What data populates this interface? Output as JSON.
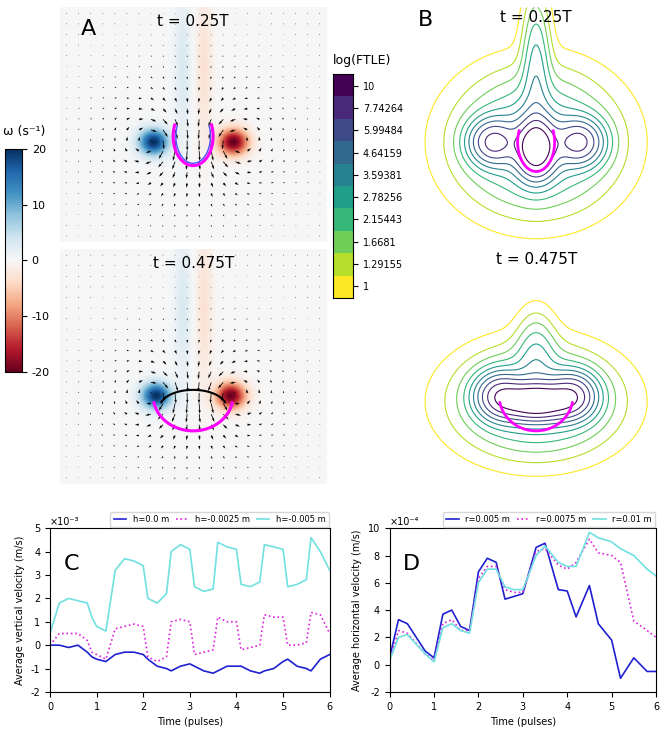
{
  "chart_data": [
    {
      "type": "vorticity_field",
      "label": "A",
      "frames": [
        "t = 0.25T",
        "t = 0.475T"
      ],
      "colorbar": {
        "label": "ω (s⁻¹)",
        "range": [
          -20,
          20
        ],
        "ticks": [
          -20,
          -10,
          0,
          10,
          20
        ]
      }
    },
    {
      "type": "ftle_contour",
      "label": "B",
      "frames": [
        "t = 0.25T",
        "t = 0.475T"
      ],
      "colorbar": {
        "label": "log(FTLE)",
        "levels": [
          10,
          7.74264,
          5.99484,
          4.64159,
          3.59381,
          2.78256,
          2.15443,
          1.6681,
          1.29155,
          1
        ],
        "colors": [
          "#440154",
          "#482878",
          "#3e4989",
          "#31688e",
          "#26828e",
          "#1f9e89",
          "#35b779",
          "#6ece58",
          "#b5de2b",
          "#fde725"
        ]
      }
    },
    {
      "type": "line",
      "label": "C",
      "x": [
        0,
        0.2,
        0.4,
        0.6,
        0.8,
        0.9,
        1.0,
        1.2,
        1.4,
        1.6,
        1.8,
        2.0,
        2.1,
        2.3,
        2.5,
        2.6,
        2.8,
        3.0,
        3.1,
        3.3,
        3.5,
        3.6,
        3.8,
        4.0,
        4.1,
        4.3,
        4.5,
        4.6,
        4.8,
        5.0,
        5.1,
        5.3,
        5.5,
        5.6,
        5.8,
        6.0
      ],
      "series": [
        {
          "name": "h=0.0 m",
          "color": "#2020d0",
          "line_style": "solid",
          "values": [
            0,
            0,
            -0.1,
            0,
            -0.3,
            -0.5,
            -0.6,
            -0.7,
            -0.4,
            -0.3,
            -0.3,
            -0.4,
            -0.6,
            -0.9,
            -1.0,
            -1.1,
            -0.9,
            -0.8,
            -0.9,
            -1.1,
            -1.2,
            -1.1,
            -0.9,
            -0.9,
            -0.9,
            -1.1,
            -1.2,
            -1.1,
            -1.0,
            -0.7,
            -0.6,
            -0.9,
            -1.0,
            -1.1,
            -0.6,
            -0.4
          ]
        },
        {
          "name": "h=-0.0025 m",
          "color": "#e020e0",
          "line_style": "dotted",
          "values": [
            0,
            0.5,
            0.5,
            0.5,
            0.2,
            -0.3,
            -0.4,
            -0.6,
            0.7,
            0.8,
            0.9,
            0.8,
            -0.5,
            -0.7,
            -0.5,
            1.0,
            1.1,
            1.0,
            -0.4,
            -0.3,
            -0.2,
            1.2,
            1.0,
            1.0,
            -0.2,
            -0.1,
            0,
            1.3,
            1.2,
            1.2,
            0,
            0,
            0.1,
            1.4,
            1.3,
            0.5
          ]
        },
        {
          "name": "h=-0.005 m",
          "color": "#70e0e0",
          "line_style": "solid",
          "values": [
            0.5,
            1.8,
            2.0,
            1.9,
            1.8,
            1.2,
            0.8,
            0.6,
            3.2,
            3.7,
            3.6,
            3.4,
            2.0,
            1.8,
            2.2,
            4.0,
            4.3,
            4.1,
            2.5,
            2.3,
            2.4,
            4.4,
            4.2,
            4.1,
            2.6,
            2.5,
            2.7,
            4.3,
            4.2,
            4.1,
            2.5,
            2.6,
            2.8,
            4.6,
            4.0,
            3.2
          ]
        }
      ],
      "xlabel": "Time (pulses)",
      "ylabel": "Average vertical velocity (m/s)",
      "y_multiplier": "×10⁻³",
      "xlim": [
        0,
        6
      ],
      "xticks": [
        0,
        1,
        2,
        3,
        4,
        5,
        6
      ],
      "ylim": [
        -2,
        5
      ],
      "yticks": [
        -2,
        -1,
        0,
        1,
        2,
        3,
        4,
        5
      ],
      "legend": "upper right"
    },
    {
      "type": "line",
      "label": "D",
      "x": [
        0,
        0.2,
        0.4,
        0.8,
        1.0,
        1.2,
        1.4,
        1.6,
        1.8,
        2.0,
        2.2,
        2.4,
        2.6,
        2.8,
        3.0,
        3.3,
        3.5,
        3.8,
        4.0,
        4.2,
        4.5,
        4.7,
        5.0,
        5.2,
        5.5,
        5.8,
        6.0
      ],
      "series": [
        {
          "name": "r=0.005 m",
          "color": "#2020d0",
          "line_style": "solid",
          "values": [
            0.5,
            3.3,
            3.0,
            1.0,
            0.5,
            3.7,
            4.0,
            2.8,
            2.5,
            6.8,
            7.8,
            7.5,
            4.8,
            5.0,
            5.2,
            8.6,
            8.9,
            5.5,
            5.4,
            3.5,
            5.8,
            3.0,
            1.8,
            -1.0,
            0.5,
            -0.5,
            -0.5
          ]
        },
        {
          "name": "r=0.0075 m",
          "color": "#e020e0",
          "line_style": "dotted",
          "values": [
            0.3,
            2.5,
            2.3,
            0.8,
            0.3,
            3.0,
            3.3,
            2.5,
            2.5,
            6.3,
            7.2,
            7.2,
            5.5,
            5.3,
            5.3,
            8.3,
            8.5,
            7.3,
            7.0,
            7.5,
            9.2,
            8.2,
            8.0,
            7.5,
            3.2,
            2.5,
            2.0
          ]
        },
        {
          "name": "r=0.01 m",
          "color": "#70e0e0",
          "line_style": "solid",
          "values": [
            0.3,
            2.0,
            2.2,
            0.8,
            0.2,
            2.7,
            3.0,
            2.5,
            2.3,
            6.0,
            7.0,
            7.0,
            5.7,
            5.5,
            5.5,
            8.0,
            8.7,
            7.5,
            7.2,
            7.2,
            9.7,
            9.3,
            9.0,
            8.5,
            8.0,
            7.0,
            6.5
          ]
        }
      ],
      "xlabel": "Time (pulses)",
      "ylabel": "Average horizontal velocity (m/s)",
      "y_multiplier": "×10⁻⁴",
      "xlim": [
        0,
        6
      ],
      "xticks": [
        0,
        1,
        2,
        3,
        4,
        5,
        6
      ],
      "ylim": [
        -2,
        10
      ],
      "yticks": [
        -2,
        0,
        2,
        4,
        6,
        8,
        10
      ],
      "legend": "upper right"
    }
  ]
}
